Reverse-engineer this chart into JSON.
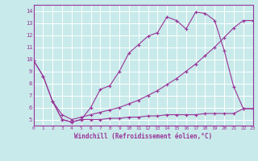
{
  "xlabel": "Windchill (Refroidissement éolien,°C)",
  "background_color": "#c8eaea",
  "line_color": "#993399",
  "grid_color": "#ffffff",
  "xlim": [
    0,
    23
  ],
  "ylim": [
    4.5,
    14.5
  ],
  "yticks": [
    5,
    6,
    7,
    8,
    9,
    10,
    11,
    12,
    13,
    14
  ],
  "xticks": [
    0,
    1,
    2,
    3,
    4,
    5,
    6,
    7,
    8,
    9,
    10,
    11,
    12,
    13,
    14,
    15,
    16,
    17,
    18,
    19,
    20,
    21,
    22,
    23
  ],
  "line1_x": [
    0,
    1,
    2,
    3,
    4,
    5,
    6,
    7,
    8,
    9,
    10,
    11,
    12,
    13,
    14,
    15,
    16,
    17,
    18,
    19,
    20,
    21,
    22,
    23
  ],
  "line1_y": [
    9.9,
    8.6,
    6.5,
    5.0,
    4.8,
    5.0,
    6.0,
    7.5,
    7.8,
    9.0,
    10.5,
    11.2,
    11.9,
    12.2,
    13.5,
    13.2,
    12.5,
    13.9,
    13.8,
    13.2,
    10.7,
    7.7,
    5.9,
    5.9
  ],
  "line2_x": [
    0,
    1,
    2,
    3,
    4,
    5,
    6,
    7,
    8,
    9,
    10,
    11,
    12,
    13,
    14,
    15,
    16,
    17,
    18,
    19,
    20,
    21,
    22,
    23
  ],
  "line2_y": [
    9.9,
    8.6,
    6.5,
    5.4,
    5.0,
    5.2,
    5.4,
    5.6,
    5.8,
    6.0,
    6.3,
    6.6,
    7.0,
    7.4,
    7.9,
    8.4,
    9.0,
    9.6,
    10.3,
    11.0,
    11.8,
    12.6,
    13.2,
    13.2
  ],
  "line3_x": [
    2,
    3,
    4,
    5,
    6,
    7,
    8,
    9,
    10,
    11,
    12,
    13,
    14,
    15,
    16,
    17,
    18,
    19,
    20,
    21,
    22,
    23
  ],
  "line3_y": [
    6.5,
    5.0,
    4.8,
    5.0,
    5.0,
    5.0,
    5.1,
    5.1,
    5.2,
    5.2,
    5.3,
    5.3,
    5.4,
    5.4,
    5.4,
    5.4,
    5.5,
    5.5,
    5.5,
    5.5,
    5.9,
    5.9
  ]
}
